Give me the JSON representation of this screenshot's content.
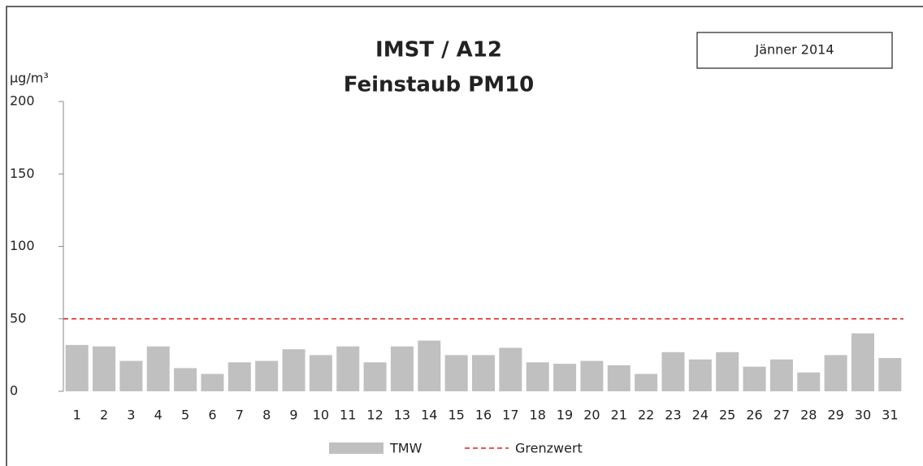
{
  "chart_data": {
    "type": "bar",
    "title": "IMST / A12",
    "subtitle": "Feinstaub PM10",
    "period": "Jänner 2014",
    "y_label": "µg/m³",
    "categories": [
      "1",
      "2",
      "3",
      "4",
      "5",
      "6",
      "7",
      "8",
      "9",
      "10",
      "11",
      "12",
      "13",
      "14",
      "15",
      "16",
      "17",
      "18",
      "19",
      "20",
      "21",
      "22",
      "23",
      "24",
      "25",
      "26",
      "27",
      "28",
      "29",
      "30",
      "31"
    ],
    "series": [
      {
        "name": "TMW",
        "color": "#c0c0c0",
        "values": [
          32,
          31,
          21,
          31,
          16,
          12,
          20,
          21,
          29,
          25,
          31,
          20,
          31,
          35,
          25,
          25,
          30,
          20,
          19,
          21,
          18,
          12,
          27,
          22,
          27,
          17,
          22,
          13,
          25,
          40,
          23
        ]
      }
    ],
    "threshold": {
      "name": "Grenzwert",
      "value": 50,
      "color": "#e02020"
    },
    "ylim": [
      0,
      200
    ],
    "yticks": [
      0,
      50,
      100,
      150,
      200
    ],
    "grid": false
  }
}
